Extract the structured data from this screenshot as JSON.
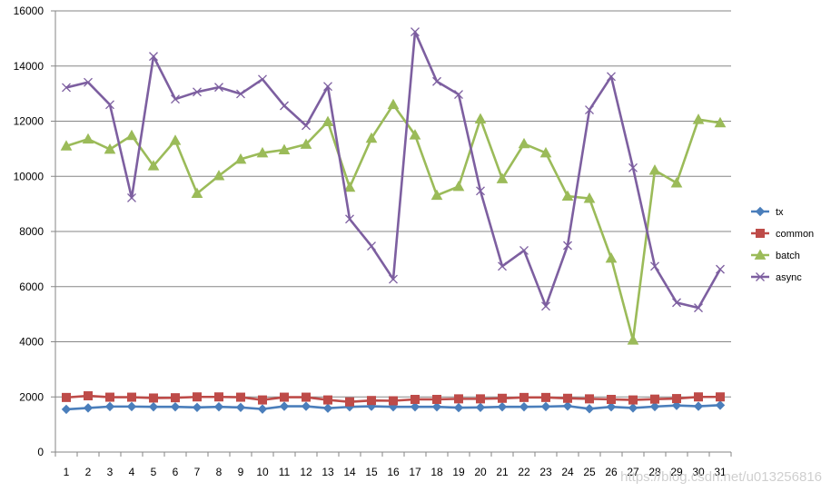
{
  "chart_data": {
    "type": "line",
    "title": "",
    "xlabel": "",
    "ylabel": "",
    "ylim": [
      0,
      16000
    ],
    "yticks": [
      0,
      2000,
      4000,
      6000,
      8000,
      10000,
      12000,
      14000,
      16000
    ],
    "grid": "horizontal",
    "legend_position": "right",
    "categories": [
      "1",
      "2",
      "3",
      "4",
      "5",
      "6",
      "7",
      "8",
      "9",
      "10",
      "11",
      "12",
      "13",
      "14",
      "15",
      "16",
      "17",
      "18",
      "19",
      "20",
      "21",
      "22",
      "23",
      "24",
      "25",
      "26",
      "27",
      "28",
      "29",
      "30",
      "31"
    ],
    "series": [
      {
        "name": "tx",
        "color": "#4a7ebb",
        "marker": "diamond",
        "values": [
          1550,
          1600,
          1650,
          1650,
          1640,
          1640,
          1620,
          1640,
          1620,
          1560,
          1660,
          1660,
          1590,
          1640,
          1660,
          1640,
          1640,
          1640,
          1610,
          1620,
          1640,
          1640,
          1650,
          1670,
          1570,
          1640,
          1600,
          1650,
          1690,
          1660,
          1700
        ]
      },
      {
        "name": "common",
        "color": "#be4b48",
        "marker": "square",
        "values": [
          1980,
          2040,
          1990,
          1990,
          1960,
          1970,
          2000,
          2000,
          1990,
          1890,
          1990,
          1990,
          1890,
          1820,
          1870,
          1860,
          1910,
          1910,
          1930,
          1930,
          1950,
          1980,
          1980,
          1950,
          1930,
          1910,
          1890,
          1920,
          1940,
          2000,
          2000
        ]
      },
      {
        "name": "batch",
        "color": "#9bbb59",
        "marker": "triangle",
        "values": [
          11100,
          11350,
          10980,
          11480,
          10380,
          11300,
          9380,
          10020,
          10620,
          10850,
          10960,
          11160,
          11980,
          9600,
          11380,
          12600,
          11500,
          9310,
          9630,
          12080,
          9910,
          11180,
          10850,
          9280,
          9200,
          7030,
          4060,
          10220,
          9760,
          12060,
          11940
        ]
      },
      {
        "name": "async",
        "color": "#7d5fa0",
        "marker": "x",
        "values": [
          13220,
          13410,
          12600,
          9220,
          14350,
          12800,
          13060,
          13230,
          12990,
          13520,
          12560,
          11840,
          13260,
          8450,
          7470,
          6270,
          15240,
          13440,
          12970,
          9470,
          6740,
          7310,
          5290,
          7490,
          12410,
          13620,
          10310,
          6740,
          5420,
          5230,
          6630
        ]
      }
    ],
    "watermark": "https://blog.csdn.net/u013256816"
  }
}
